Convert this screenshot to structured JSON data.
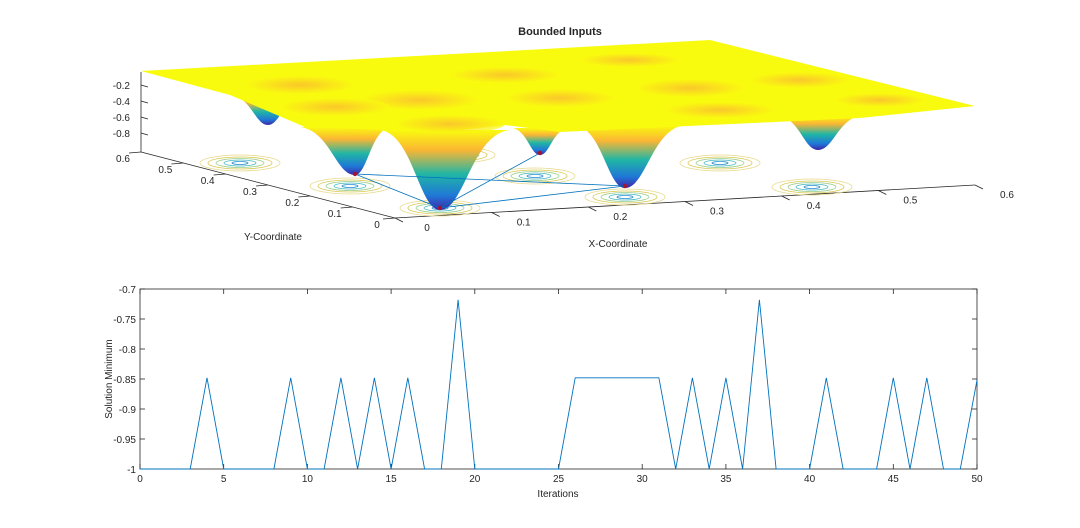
{
  "chart_data": [
    {
      "type": "surface",
      "title": "Bounded Inputs",
      "xlabel": "X-Coordinate",
      "ylabel": "Y-Coordinate",
      "zlabel": "",
      "xlim": [
        0,
        0.6
      ],
      "ylim": [
        0,
        0.6
      ],
      "x_ticks": [
        "0",
        "0.1",
        "0.2",
        "0.3",
        "0.4",
        "0.5",
        "0.6"
      ],
      "y_ticks": [
        "0",
        "0.1",
        "0.2",
        "0.3",
        "0.4",
        "0.5",
        "0.6"
      ],
      "z_ticks": [
        "-0.2",
        "-0.4",
        "-0.6",
        "-0.8"
      ],
      "colormap": [
        "#f9fb0e",
        "#fbb634",
        "#21b6a4",
        "#1f78d7",
        "#3e26a8"
      ],
      "contours_on_floor": true,
      "marker_color": "#a2142f",
      "path_color": "#0072bd"
    },
    {
      "type": "line",
      "xlabel": "Iterations",
      "ylabel": "Solution Minimum",
      "xlim": [
        0,
        50
      ],
      "ylim": [
        -1,
        -0.7
      ],
      "x_ticks": [
        "0",
        "5",
        "10",
        "15",
        "20",
        "25",
        "30",
        "35",
        "40",
        "45",
        "50"
      ],
      "y_ticks": [
        "-0.7",
        "-0.75",
        "-0.8",
        "-0.85",
        "-0.9",
        "-0.95",
        "-1"
      ],
      "grid": false,
      "color": "#0072bd",
      "x": [
        0,
        1,
        2,
        3,
        4,
        5,
        6,
        7,
        8,
        9,
        10,
        11,
        12,
        13,
        14,
        15,
        16,
        17,
        18,
        19,
        20,
        21,
        22,
        23,
        24,
        25,
        26,
        27,
        28,
        29,
        30,
        31,
        32,
        33,
        34,
        35,
        36,
        37,
        38,
        39,
        40,
        41,
        42,
        43,
        44,
        45,
        46,
        47,
        48,
        49,
        50
      ],
      "y": [
        -1,
        -1,
        -1,
        -1,
        -0.848,
        -1,
        -1,
        -1,
        -1,
        -0.848,
        -1,
        -1,
        -0.848,
        -1,
        -0.848,
        -1,
        -0.848,
        -1,
        -1,
        -0.718,
        -1,
        -1,
        -1,
        -1,
        -1,
        -1,
        -0.848,
        -0.848,
        -0.848,
        -0.848,
        -0.848,
        -0.848,
        -1,
        -0.848,
        -1,
        -0.848,
        -1,
        -0.718,
        -1,
        -1,
        -1,
        -0.848,
        -1,
        -1,
        -1,
        -0.848,
        -1,
        -0.848,
        -1,
        -1,
        -0.852
      ]
    }
  ]
}
